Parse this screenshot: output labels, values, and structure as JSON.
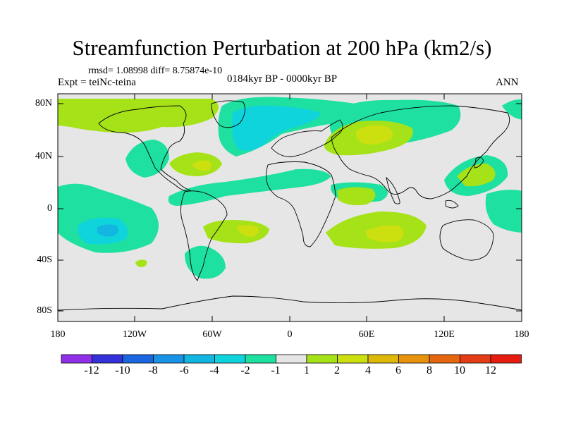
{
  "title": "Streamfunction Perturbation at 200 hPa (km2/s)",
  "stats": "rmsd= 1.08998  diff= 8.75874e-10",
  "experiment": "Expt = teiNc-teina",
  "period": "0184kyr BP - 0000kyr BP",
  "season": "ANN",
  "map": {
    "lat_labels": [
      "80N",
      "40N",
      "0",
      "40S",
      "80S"
    ],
    "lon_labels": [
      "180",
      "120W",
      "60W",
      "0",
      "60E",
      "120E",
      "180"
    ]
  },
  "colorbar": {
    "labels": [
      "-12",
      "-10",
      "-8",
      "-6",
      "-4",
      "-2",
      "-1",
      "1",
      "2",
      "4",
      "6",
      "8",
      "10",
      "12"
    ],
    "colors": [
      "#8f30e8",
      "#3232d8",
      "#1a66e0",
      "#1993e6",
      "#12b6e0",
      "#10d4dc",
      "#1ee0a0",
      "#e6e6e6",
      "#a6e218",
      "#cce010",
      "#ddb806",
      "#e6920c",
      "#e4660e",
      "#e43c14",
      "#e61c10"
    ]
  },
  "colors": {
    "background": "#e6e6e6",
    "coast": "#000000"
  }
}
